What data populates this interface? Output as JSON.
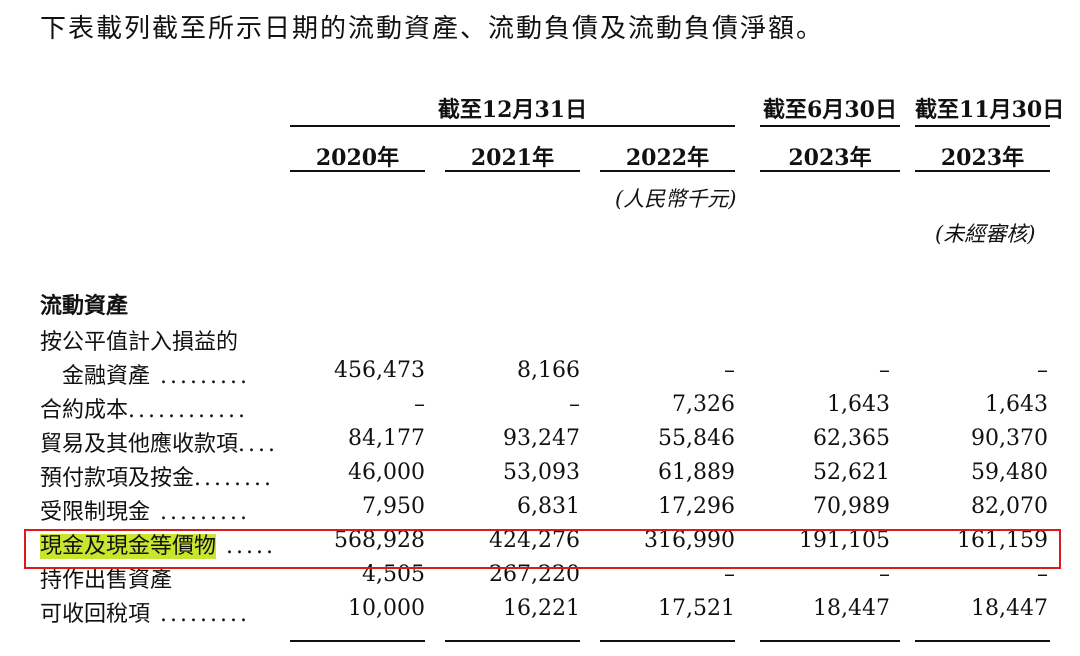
{
  "intro": "下表載列截至所示日期的流動資產、流動負債及流動負債淨額。",
  "headers": {
    "period_dec31": "截至12月31日",
    "period_jun30": "截至6月30日",
    "period_nov30": "截至11月30日",
    "years": [
      "2020年",
      "2021年",
      "2022年",
      "2023年",
      "2023年"
    ],
    "unit": "(人民幣千元)",
    "unaudited": "(未經審核)"
  },
  "section_title": "流動資產",
  "rows": [
    {
      "label": "按公平值計入損益的",
      "dots": "",
      "values": [
        "",
        "",
        "",
        "",
        ""
      ]
    },
    {
      "label": "　金融資產",
      "dots": " .........",
      "values": [
        "456,473",
        "8,166",
        "–",
        "–",
        "–"
      ]
    },
    {
      "label": "合約成本",
      "dots": "............",
      "values": [
        "–",
        "–",
        "7,326",
        "1,643",
        "1,643"
      ]
    },
    {
      "label": "貿易及其他應收款項",
      "dots": "....",
      "values": [
        "84,177",
        "93,247",
        "55,846",
        "62,365",
        "90,370"
      ]
    },
    {
      "label": "預付款項及按金",
      "dots": "........",
      "values": [
        "46,000",
        "53,093",
        "61,889",
        "52,621",
        "59,480"
      ]
    },
    {
      "label": "受限制現金",
      "dots": " .........",
      "values": [
        "7,950",
        "6,831",
        "17,296",
        "70,989",
        "82,070"
      ]
    },
    {
      "label": "現金及現金等價物",
      "dots": " .....",
      "values": [
        "568,928",
        "424,276",
        "316,990",
        "191,105",
        "161,159"
      ],
      "highlight": true
    },
    {
      "label": "持作出售資產",
      "dots": "",
      "values": [
        "4,505",
        "267,220",
        "–",
        "–",
        "–"
      ]
    },
    {
      "label": "可收回稅項",
      "dots": " .........",
      "values": [
        "10,000",
        "16,221",
        "17,521",
        "18,447",
        "18,447"
      ]
    }
  ]
}
